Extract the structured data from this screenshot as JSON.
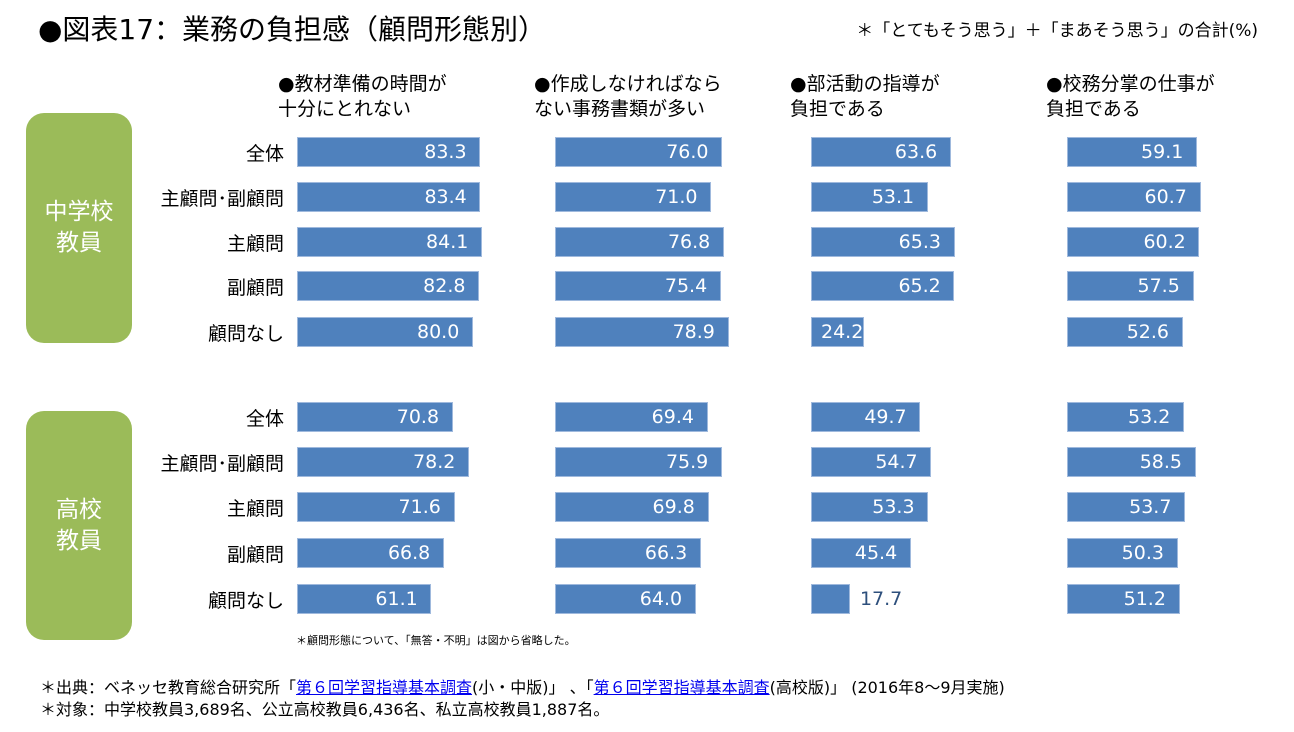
{
  "title": "●図表17：業務の負担感（顧問形態別）",
  "note_top": "＊「とてもそう思う」＋「まあそう思う」の合計(%)",
  "footnote_small": "＊顧問形態について、「無答・不明」は図から省略した。",
  "source": {
    "prefix": "＊出典：ベネッセ教育総合研究所「",
    "link1": "第６回学習指導基本調査",
    "mid1": "(小・中版)」 、「",
    "link2": "第６回学習指導基本調査",
    "suffix": "(高校版)」 (2016年8～9月実施)",
    "target": "＊対象：中学校教員3,689名、公立高校教員6,436名、私立高校教員1,887名。"
  },
  "colors": {
    "bar": "#4f81bd",
    "group_box": "#9bbb59",
    "outside_label": "#2d4f7c"
  },
  "chart_data": {
    "type": "bar",
    "orientation": "horizontal",
    "title": "業務の負担感（顧問形態別）",
    "unit": "%",
    "panels": [
      {
        "name": "●教材準備の時間が\n十分にとれない"
      },
      {
        "name": "●作成しなければなら\nない事務書類が多い"
      },
      {
        "name": "●部活動の指導が\n負担である"
      },
      {
        "name": "●校務分掌の仕事が\n負担である"
      }
    ],
    "categories": [
      "全体",
      "主顧問･副顧問",
      "主顧問",
      "副顧問",
      "顧問なし"
    ],
    "groups": [
      {
        "name": "中学校\n教員",
        "values": [
          [
            83.3,
            83.4,
            84.1,
            82.8,
            80.0
          ],
          [
            76.0,
            71.0,
            76.8,
            75.4,
            78.9
          ],
          [
            63.6,
            53.1,
            65.3,
            65.2,
            24.2
          ],
          [
            59.1,
            60.7,
            60.2,
            57.5,
            52.6
          ]
        ]
      },
      {
        "name": "高校\n教員",
        "values": [
          [
            70.8,
            78.2,
            71.6,
            66.8,
            61.1
          ],
          [
            69.4,
            75.9,
            69.8,
            66.3,
            64.0
          ],
          [
            49.7,
            54.7,
            53.3,
            45.4,
            17.7
          ],
          [
            53.2,
            58.5,
            53.7,
            50.3,
            51.2
          ]
        ]
      }
    ],
    "xlim": [
      0,
      100
    ],
    "grid": false,
    "legend": "none"
  }
}
